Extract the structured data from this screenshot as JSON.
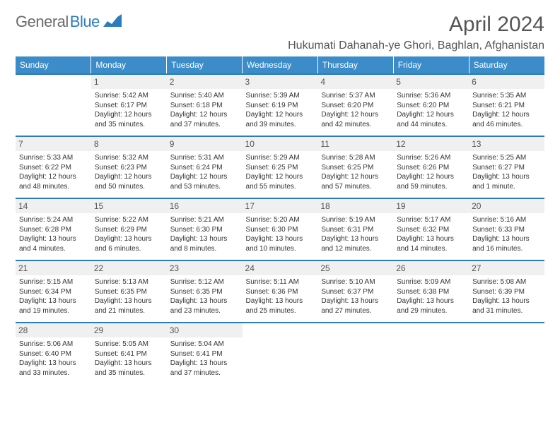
{
  "logo": {
    "text1": "General",
    "text2": "Blue"
  },
  "title": "April 2024",
  "location": "Hukumati Dahanah-ye Ghori, Baghlan, Afghanistan",
  "colors": {
    "header_bg": "#3b8cc9",
    "border": "#2a7cbf",
    "daynum_bg": "#f0f0f0"
  },
  "day_headers": [
    "Sunday",
    "Monday",
    "Tuesday",
    "Wednesday",
    "Thursday",
    "Friday",
    "Saturday"
  ],
  "weeks": [
    [
      {
        "n": "",
        "t": ""
      },
      {
        "n": "1",
        "t": "Sunrise: 5:42 AM\nSunset: 6:17 PM\nDaylight: 12 hours and 35 minutes."
      },
      {
        "n": "2",
        "t": "Sunrise: 5:40 AM\nSunset: 6:18 PM\nDaylight: 12 hours and 37 minutes."
      },
      {
        "n": "3",
        "t": "Sunrise: 5:39 AM\nSunset: 6:19 PM\nDaylight: 12 hours and 39 minutes."
      },
      {
        "n": "4",
        "t": "Sunrise: 5:37 AM\nSunset: 6:20 PM\nDaylight: 12 hours and 42 minutes."
      },
      {
        "n": "5",
        "t": "Sunrise: 5:36 AM\nSunset: 6:20 PM\nDaylight: 12 hours and 44 minutes."
      },
      {
        "n": "6",
        "t": "Sunrise: 5:35 AM\nSunset: 6:21 PM\nDaylight: 12 hours and 46 minutes."
      }
    ],
    [
      {
        "n": "7",
        "t": "Sunrise: 5:33 AM\nSunset: 6:22 PM\nDaylight: 12 hours and 48 minutes."
      },
      {
        "n": "8",
        "t": "Sunrise: 5:32 AM\nSunset: 6:23 PM\nDaylight: 12 hours and 50 minutes."
      },
      {
        "n": "9",
        "t": "Sunrise: 5:31 AM\nSunset: 6:24 PM\nDaylight: 12 hours and 53 minutes."
      },
      {
        "n": "10",
        "t": "Sunrise: 5:29 AM\nSunset: 6:25 PM\nDaylight: 12 hours and 55 minutes."
      },
      {
        "n": "11",
        "t": "Sunrise: 5:28 AM\nSunset: 6:25 PM\nDaylight: 12 hours and 57 minutes."
      },
      {
        "n": "12",
        "t": "Sunrise: 5:26 AM\nSunset: 6:26 PM\nDaylight: 12 hours and 59 minutes."
      },
      {
        "n": "13",
        "t": "Sunrise: 5:25 AM\nSunset: 6:27 PM\nDaylight: 13 hours and 1 minute."
      }
    ],
    [
      {
        "n": "14",
        "t": "Sunrise: 5:24 AM\nSunset: 6:28 PM\nDaylight: 13 hours and 4 minutes."
      },
      {
        "n": "15",
        "t": "Sunrise: 5:22 AM\nSunset: 6:29 PM\nDaylight: 13 hours and 6 minutes."
      },
      {
        "n": "16",
        "t": "Sunrise: 5:21 AM\nSunset: 6:30 PM\nDaylight: 13 hours and 8 minutes."
      },
      {
        "n": "17",
        "t": "Sunrise: 5:20 AM\nSunset: 6:30 PM\nDaylight: 13 hours and 10 minutes."
      },
      {
        "n": "18",
        "t": "Sunrise: 5:19 AM\nSunset: 6:31 PM\nDaylight: 13 hours and 12 minutes."
      },
      {
        "n": "19",
        "t": "Sunrise: 5:17 AM\nSunset: 6:32 PM\nDaylight: 13 hours and 14 minutes."
      },
      {
        "n": "20",
        "t": "Sunrise: 5:16 AM\nSunset: 6:33 PM\nDaylight: 13 hours and 16 minutes."
      }
    ],
    [
      {
        "n": "21",
        "t": "Sunrise: 5:15 AM\nSunset: 6:34 PM\nDaylight: 13 hours and 19 minutes."
      },
      {
        "n": "22",
        "t": "Sunrise: 5:13 AM\nSunset: 6:35 PM\nDaylight: 13 hours and 21 minutes."
      },
      {
        "n": "23",
        "t": "Sunrise: 5:12 AM\nSunset: 6:35 PM\nDaylight: 13 hours and 23 minutes."
      },
      {
        "n": "24",
        "t": "Sunrise: 5:11 AM\nSunset: 6:36 PM\nDaylight: 13 hours and 25 minutes."
      },
      {
        "n": "25",
        "t": "Sunrise: 5:10 AM\nSunset: 6:37 PM\nDaylight: 13 hours and 27 minutes."
      },
      {
        "n": "26",
        "t": "Sunrise: 5:09 AM\nSunset: 6:38 PM\nDaylight: 13 hours and 29 minutes."
      },
      {
        "n": "27",
        "t": "Sunrise: 5:08 AM\nSunset: 6:39 PM\nDaylight: 13 hours and 31 minutes."
      }
    ],
    [
      {
        "n": "28",
        "t": "Sunrise: 5:06 AM\nSunset: 6:40 PM\nDaylight: 13 hours and 33 minutes."
      },
      {
        "n": "29",
        "t": "Sunrise: 5:05 AM\nSunset: 6:41 PM\nDaylight: 13 hours and 35 minutes."
      },
      {
        "n": "30",
        "t": "Sunrise: 5:04 AM\nSunset: 6:41 PM\nDaylight: 13 hours and 37 minutes."
      },
      {
        "n": "",
        "t": ""
      },
      {
        "n": "",
        "t": ""
      },
      {
        "n": "",
        "t": ""
      },
      {
        "n": "",
        "t": ""
      }
    ]
  ]
}
